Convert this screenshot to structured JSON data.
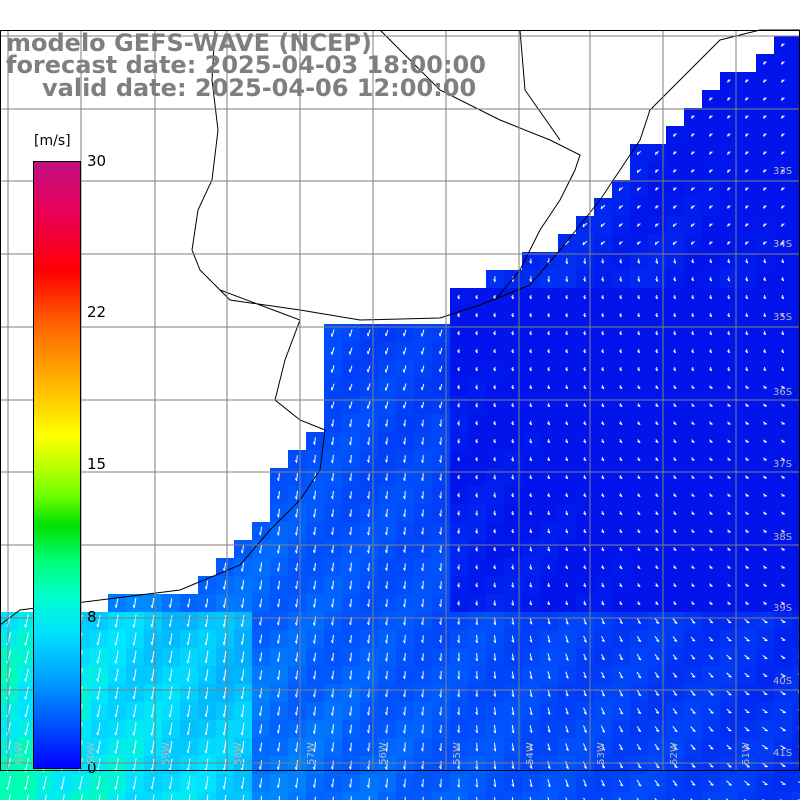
{
  "title": {
    "line1": "modelo GEFS-WAVE (NCEP)",
    "line2": "forecast date: 2025-04-03 18:00:00",
    "line3": "valid date: 2025-04-06 12:00:00"
  },
  "colorbar": {
    "unit": "[m/s]",
    "ticks": [
      "30",
      "22",
      "15",
      "8",
      "0"
    ],
    "colors": [
      "#c0107f",
      "#ff0000",
      "#ff9900",
      "#ffff00",
      "#00e000",
      "#00ffff",
      "#0099ff",
      "#0000ff"
    ]
  },
  "grid": {
    "lat_labels": [
      "33S",
      "34S",
      "35S",
      "36S",
      "37S",
      "38S",
      "39S",
      "40S",
      "41S"
    ],
    "lon_labels": [
      "61W",
      "60W",
      "59W",
      "58W",
      "57W",
      "56W",
      "55W",
      "54W",
      "53W",
      "52W",
      "51W"
    ]
  },
  "map": {
    "variable": "wind speed and direction",
    "land_color": "#ffffff",
    "gridline_color": "#7f7f7f",
    "arrow_color": "#ffffff"
  }
}
